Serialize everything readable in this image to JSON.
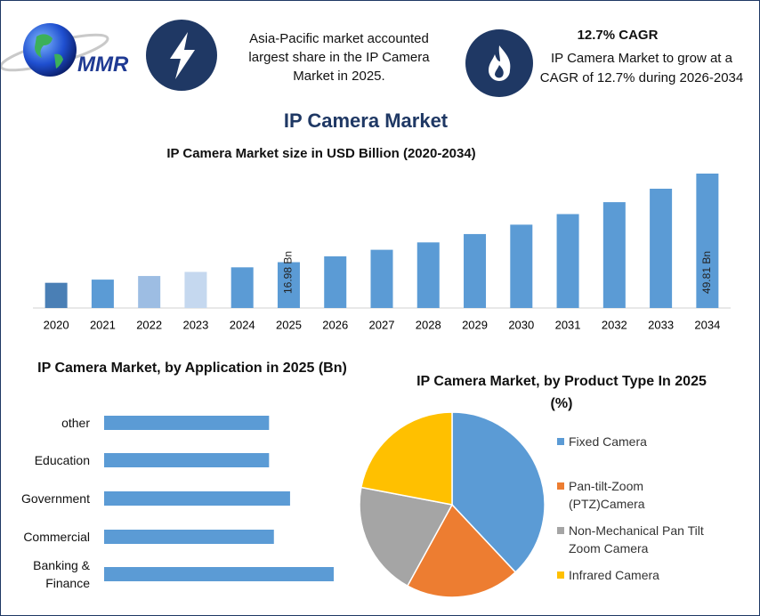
{
  "header": {
    "logo": "MMR",
    "fact1": "Asia-Pacific market accounted largest share in the IP Camera Market in 2025.",
    "fact2_title": "12.7% CAGR",
    "fact2": "IP Camera Market to grow at a CAGR of 12.7% during 2026-2034"
  },
  "title": "IP Camera Market",
  "chart_data": [
    {
      "type": "bar",
      "title": "IP Camera Market size in USD Billion (2020-2034)",
      "categories": [
        "2020",
        "2021",
        "2022",
        "2023",
        "2024",
        "2025",
        "2026",
        "2027",
        "2028",
        "2029",
        "2030",
        "2031",
        "2032",
        "2033",
        "2034"
      ],
      "values": [
        9.34,
        10.52,
        11.86,
        13.37,
        15.07,
        16.98,
        19.14,
        21.57,
        24.31,
        27.4,
        30.88,
        34.8,
        39.22,
        44.2,
        49.81
      ],
      "value_labels": [
        null,
        null,
        null,
        null,
        null,
        "16.98 Bn",
        null,
        null,
        null,
        null,
        null,
        null,
        null,
        null,
        "49.81 Bn"
      ],
      "colors": [
        "#4a7fb5",
        "#5b9bd5",
        "#9dbde3",
        "#c5d8ef",
        "#5b9bd5",
        "#5b9bd5",
        "#5b9bd5",
        "#5b9bd5",
        "#5b9bd5",
        "#5b9bd5",
        "#5b9bd5",
        "#5b9bd5",
        "#5b9bd5",
        "#5b9bd5",
        "#5b9bd5"
      ]
    },
    {
      "type": "barh",
      "title": "IP Camera Market, by Application in 2025 (Bn)",
      "categories": [
        "other",
        "Education",
        "Government",
        "Commercial",
        "Banking & Finance"
      ],
      "values": [
        3.06,
        3.06,
        3.45,
        3.15,
        4.26
      ],
      "color": "#5b9bd5"
    },
    {
      "type": "pie",
      "title": "IP Camera Market, by Product Type In 2025 (%)",
      "categories": [
        "Fixed Camera",
        "Pan-tilt-Zoom (PTZ)Camera",
        "Non-Mechanical Pan Tilt Zoom Camera",
        "Infrared Camera"
      ],
      "values": [
        38,
        20,
        20,
        22
      ],
      "colors": [
        "#5b9bd5",
        "#ed7d31",
        "#a5a5a5",
        "#ffc000"
      ]
    }
  ]
}
